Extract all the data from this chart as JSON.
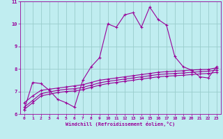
{
  "xlabel": "Windchill (Refroidissement éolien,°C)",
  "xlim": [
    -0.5,
    23.5
  ],
  "ylim": [
    6,
    11
  ],
  "yticks": [
    6,
    7,
    8,
    9,
    10,
    11
  ],
  "xticks": [
    0,
    1,
    2,
    3,
    4,
    5,
    6,
    7,
    8,
    9,
    10,
    11,
    12,
    13,
    14,
    15,
    16,
    17,
    18,
    19,
    20,
    21,
    22,
    23
  ],
  "bg_color": "#c0edf0",
  "line_color": "#990099",
  "grid_color": "#99cccc",
  "line1": [
    6.2,
    7.4,
    7.35,
    7.05,
    6.65,
    6.5,
    6.3,
    7.5,
    8.1,
    8.5,
    10.0,
    9.85,
    10.4,
    10.5,
    9.85,
    10.75,
    10.2,
    9.95,
    8.55,
    8.1,
    7.95,
    7.65,
    7.6,
    8.1
  ],
  "line2": [
    6.5,
    6.8,
    7.05,
    7.1,
    7.15,
    7.2,
    7.25,
    7.3,
    7.4,
    7.5,
    7.55,
    7.6,
    7.65,
    7.7,
    7.75,
    7.8,
    7.85,
    7.88,
    7.9,
    7.92,
    7.95,
    7.97,
    7.98,
    8.05
  ],
  "line3": [
    6.3,
    6.6,
    6.9,
    6.98,
    7.05,
    7.1,
    7.12,
    7.18,
    7.28,
    7.38,
    7.45,
    7.5,
    7.55,
    7.6,
    7.65,
    7.7,
    7.75,
    7.78,
    7.8,
    7.82,
    7.85,
    7.88,
    7.9,
    7.95
  ],
  "line4": [
    6.2,
    6.5,
    6.8,
    6.88,
    6.95,
    7.0,
    7.02,
    7.08,
    7.18,
    7.28,
    7.35,
    7.4,
    7.45,
    7.5,
    7.55,
    7.6,
    7.65,
    7.68,
    7.7,
    7.72,
    7.75,
    7.78,
    7.8,
    7.85
  ]
}
